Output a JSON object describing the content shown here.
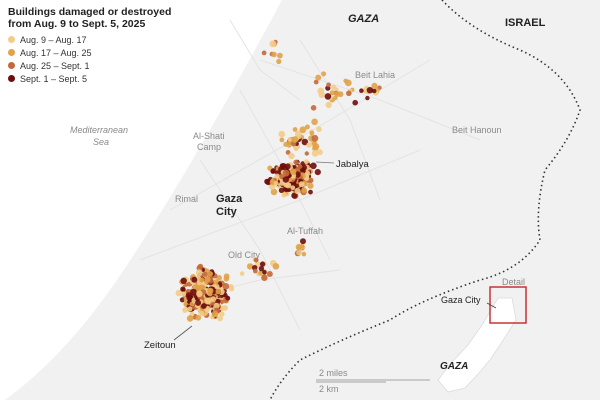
{
  "legend": {
    "title_line1": "Buildings damaged or destroyed",
    "title_line2": "from Aug. 9 to Sept. 5, 2025",
    "items": [
      {
        "label": "Aug. 9 – Aug. 17",
        "color": "#f2cc8a"
      },
      {
        "label": "Aug. 17 – Aug. 25",
        "color": "#e0a24a"
      },
      {
        "label": "Aug. 25 – Sept. 1",
        "color": "#c4683a"
      },
      {
        "label": "Sept. 1 – Sept. 5",
        "color": "#6e0d0d"
      }
    ]
  },
  "labels": {
    "gaza_region": "GAZA",
    "israel": "ISRAEL",
    "med_sea_line1": "Mediterranean",
    "med_sea_line2": "Sea",
    "beit_lahia": "Beit Lahia",
    "beit_hanoun": "Beit Hanoun",
    "al_shati_line1": "Al-Shati",
    "al_shati_line2": "Camp",
    "jabalya": "Jabalya",
    "rimal": "Rimal",
    "gaza_city_line1": "Gaza",
    "gaza_city_line2": "City",
    "al_tuffah": "Al-Tuffah",
    "old_city": "Old City",
    "zeitoun": "Zeitoun"
  },
  "scale": {
    "miles": "2 miles",
    "km": "2 km"
  },
  "inset": {
    "detail_label": "Detail",
    "city_label": "Gaza City",
    "region_label": "GAZA"
  },
  "colors": {
    "sea": "#ffffff",
    "land": "#f2f2f2",
    "detail_box": "#c4272e",
    "period1": "#f2cc8a",
    "period2": "#e0a24a",
    "period3": "#c4683a",
    "period4": "#6e0d0d"
  }
}
